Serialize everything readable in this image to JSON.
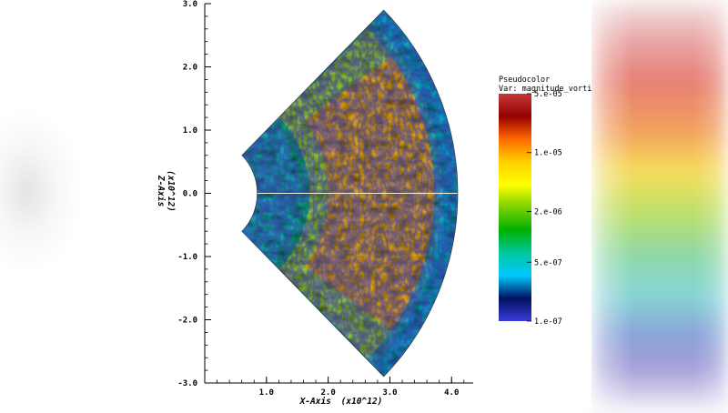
{
  "chart_data": {
    "type": "heatmap",
    "xlabel": "X-Axis",
    "xlabel_scale": "(x10^12)",
    "ylabel": "Z-Axis",
    "ylabel_scale": "(x10^12)",
    "xlim": [
      0.0,
      4.35
    ],
    "ylim": [
      -3.0,
      3.0
    ],
    "x_ticks": [
      1.0,
      2.0,
      3.0,
      4.0
    ],
    "x_tick_labels": [
      "1.0",
      "2.0",
      "3.0",
      "4.0"
    ],
    "y_ticks": [
      3.0,
      2.0,
      1.0,
      0.0,
      -1.0,
      -2.0,
      -3.0
    ],
    "y_tick_labels": [
      "3.0",
      "2.0",
      "1.0",
      "0.0",
      "-1.0",
      "-2.0",
      "-3.0"
    ],
    "domain": {
      "inner_radius": 0.85,
      "outer_radius": 4.1,
      "half_angle_deg": 45
    },
    "legend": {
      "title": "Pseudocolor",
      "variable": "Var: magnitude_vorticity",
      "scale": "log",
      "range": [
        1e-07,
        5e-05
      ],
      "tick_values": [
        5e-05,
        1e-05,
        2e-06,
        5e-07,
        1e-07
      ],
      "tick_labels": [
        "5.e-05",
        "1.e-05",
        "2.e-06",
        "5.e-07",
        "1.e-07"
      ],
      "colors": [
        "#c43a3a",
        "#960000",
        "#ff6a00",
        "#ffd000",
        "#ffff00",
        "#7ad000",
        "#00b000",
        "#00c8a0",
        "#00c8ff",
        "#001060",
        "#3c3cd8"
      ]
    }
  }
}
